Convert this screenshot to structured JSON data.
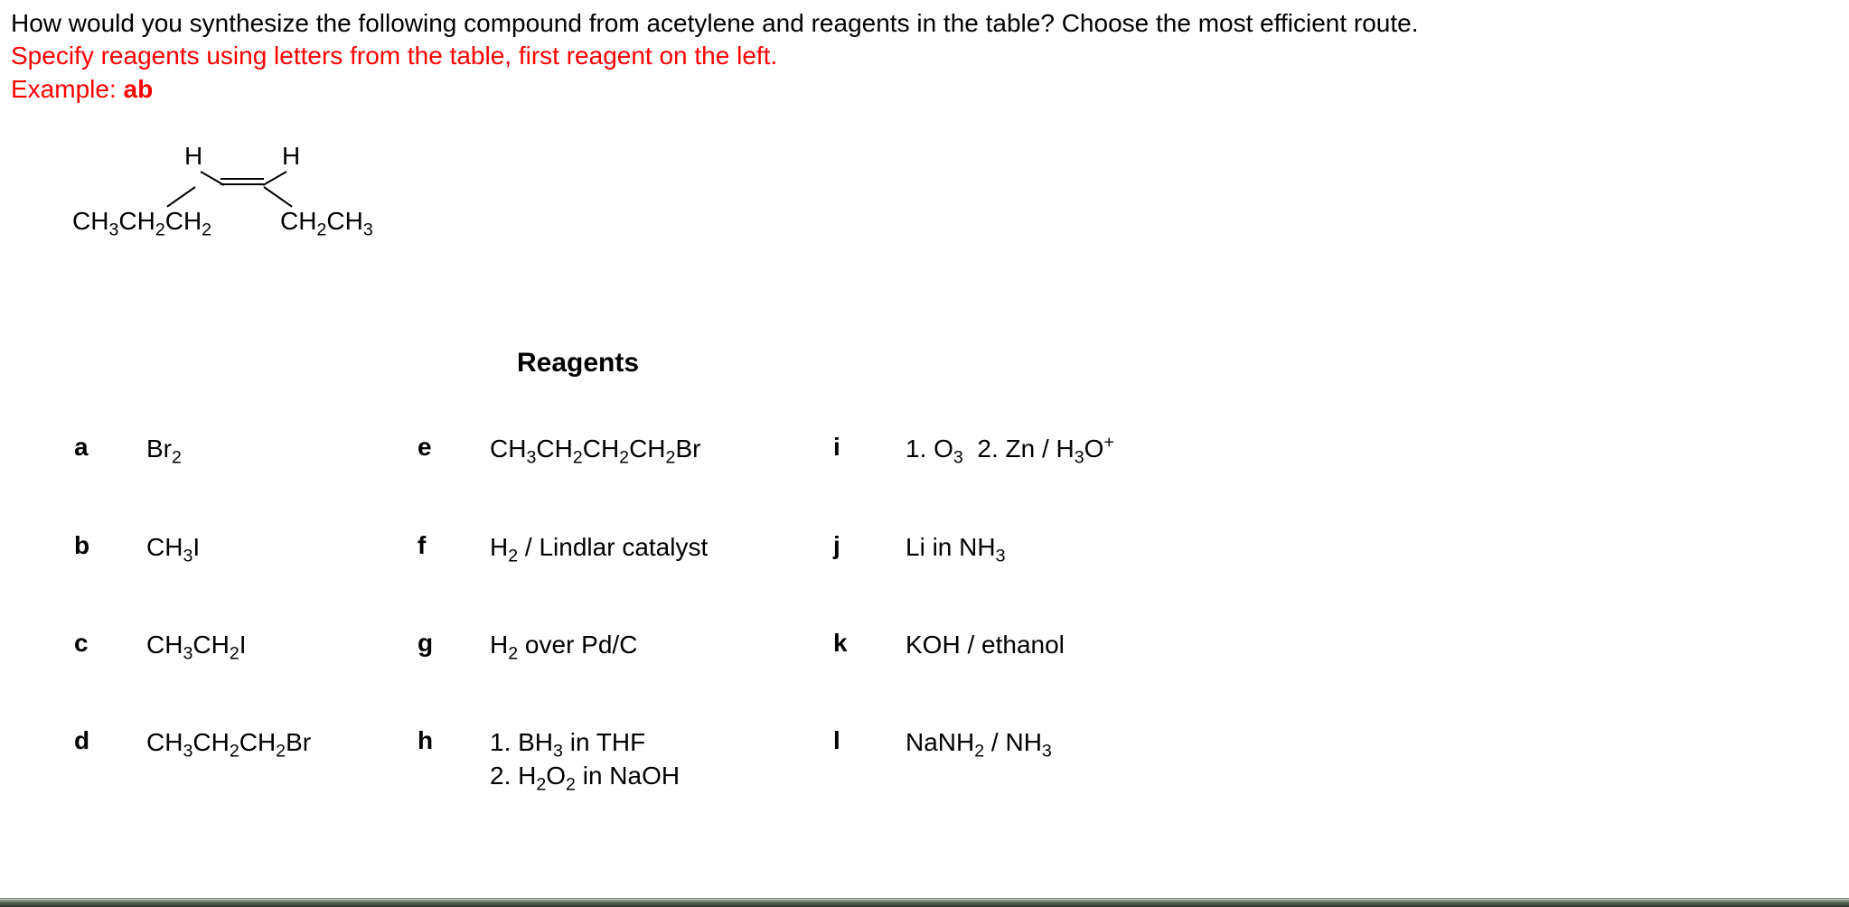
{
  "question": {
    "line1": "How would you synthesize the following compound from acetylene and reagents in the table? Choose the most efficient route.",
    "line2": "Specify reagents using letters from the table, first reagent on the left.",
    "line3_prefix": "Example: ",
    "line3_bold": "ab",
    "line1_color": "#000000",
    "line2_color": "#ff0000",
    "line3_color": "#ff0000",
    "fontsize": 28
  },
  "compound": {
    "h_left": "H",
    "h_right": "H",
    "group_left": "CH",
    "group_left_sub1": "3",
    "group_left_mid": "CH",
    "group_left_sub2": "2",
    "group_left_end": "CH",
    "group_left_sub3": "2",
    "group_right": "CH",
    "group_right_sub1": "2",
    "group_right_mid": "CH",
    "group_right_sub2": "3",
    "bond_color": "#000000"
  },
  "reagents_heading": "Reagents",
  "reagents": {
    "a": {
      "letter": "a",
      "html": "Br<sub>2</sub>"
    },
    "b": {
      "letter": "b",
      "html": "CH<sub>3</sub>I"
    },
    "c": {
      "letter": "c",
      "html": "CH<sub>3</sub>CH<sub>2</sub>I"
    },
    "d": {
      "letter": "d",
      "html": "CH<sub>3</sub>CH<sub>2</sub>CH<sub>2</sub>Br"
    },
    "e": {
      "letter": "e",
      "html": "CH<sub>3</sub>CH<sub>2</sub>CH<sub>2</sub>CH<sub>2</sub>Br"
    },
    "f": {
      "letter": "f",
      "html": "H<sub>2</sub> / Lindlar catalyst"
    },
    "g": {
      "letter": "g",
      "html": "H<sub>2</sub> over Pd/C"
    },
    "h": {
      "letter": "h",
      "html": "1. BH<sub>3</sub> in THF<br>2. H<sub>2</sub>O<sub>2</sub> in NaOH"
    },
    "i": {
      "letter": "i",
      "html": "1. O<sub>3</sub>&nbsp;&nbsp;2. Zn / H<sub>3</sub>O<sup>+</sup>"
    },
    "j": {
      "letter": "j",
      "html": "Li in NH<sub>3</sub>"
    },
    "k": {
      "letter": "k",
      "html": "KOH / ethanol"
    },
    "l": {
      "letter": "l",
      "html": "NaNH<sub>2</sub> / NH<sub>3</sub>"
    }
  },
  "layout": {
    "grid_order": [
      "a",
      "e",
      "i",
      "b",
      "f",
      "j",
      "c",
      "g",
      "k",
      "d",
      "h",
      "l"
    ]
  }
}
